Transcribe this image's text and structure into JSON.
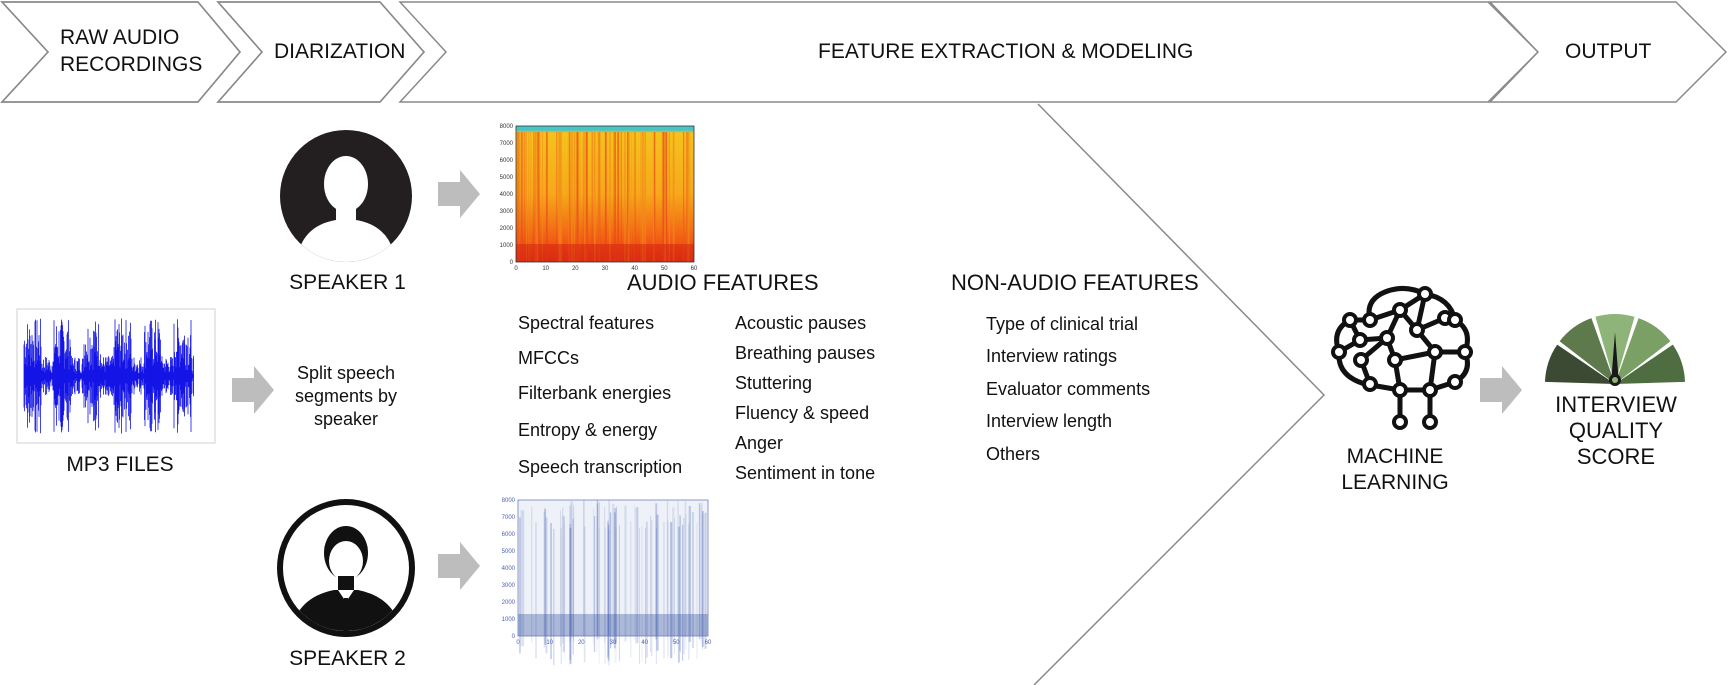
{
  "stages": {
    "raw_audio": "RAW AUDIO RECORDINGS",
    "diarization": "DIARIZATION",
    "feature_extraction": "FEATURE EXTRACTION & MODELING",
    "output": "OUTPUT"
  },
  "input": {
    "mp3_caption": "MP3 FILES",
    "split_text": "Split speech segments by speaker"
  },
  "speakers": {
    "speaker1": "SPEAKER 1",
    "speaker2": "SPEAKER 2"
  },
  "spectrogram1": {
    "y_ticks": [
      "0",
      "1000",
      "2000",
      "3000",
      "4000",
      "5000",
      "6000",
      "7000",
      "8000"
    ],
    "x_ticks": [
      "0",
      "10",
      "20",
      "30",
      "40",
      "50",
      "60"
    ]
  },
  "spectrogram2": {
    "y_ticks": [
      "0",
      "1000",
      "2000",
      "3000",
      "4000",
      "5000",
      "6000",
      "7000",
      "8000"
    ],
    "x_ticks": [
      "0",
      "10",
      "20",
      "30",
      "40",
      "50",
      "60"
    ]
  },
  "audio_features": {
    "heading": "AUDIO FEATURES",
    "col1": [
      "Spectral features",
      "MFCCs",
      "Filterbank energies",
      "Entropy & energy",
      "Speech transcription"
    ],
    "col2": [
      "Acoustic pauses",
      "Breathing pauses",
      "Stuttering",
      "Fluency & speed",
      "Anger",
      "Sentiment in tone"
    ]
  },
  "non_audio_features": {
    "heading": "NON-AUDIO FEATURES",
    "items": [
      "Type of clinical trial",
      "Interview ratings",
      "Evaluator comments",
      "Interview length",
      "Others"
    ]
  },
  "model": {
    "label": "MACHINE LEARNING"
  },
  "result": {
    "label": "INTERVIEW QUALITY SCORE",
    "gauge_colors": [
      "#3c4a34",
      "#5e7a4c",
      "#8fb47a",
      "#7aa066",
      "#4e6d40"
    ]
  },
  "colors": {
    "waveform": "#1414e6",
    "arrow": "#bdbdbd",
    "outline": "#8a8a8a"
  }
}
